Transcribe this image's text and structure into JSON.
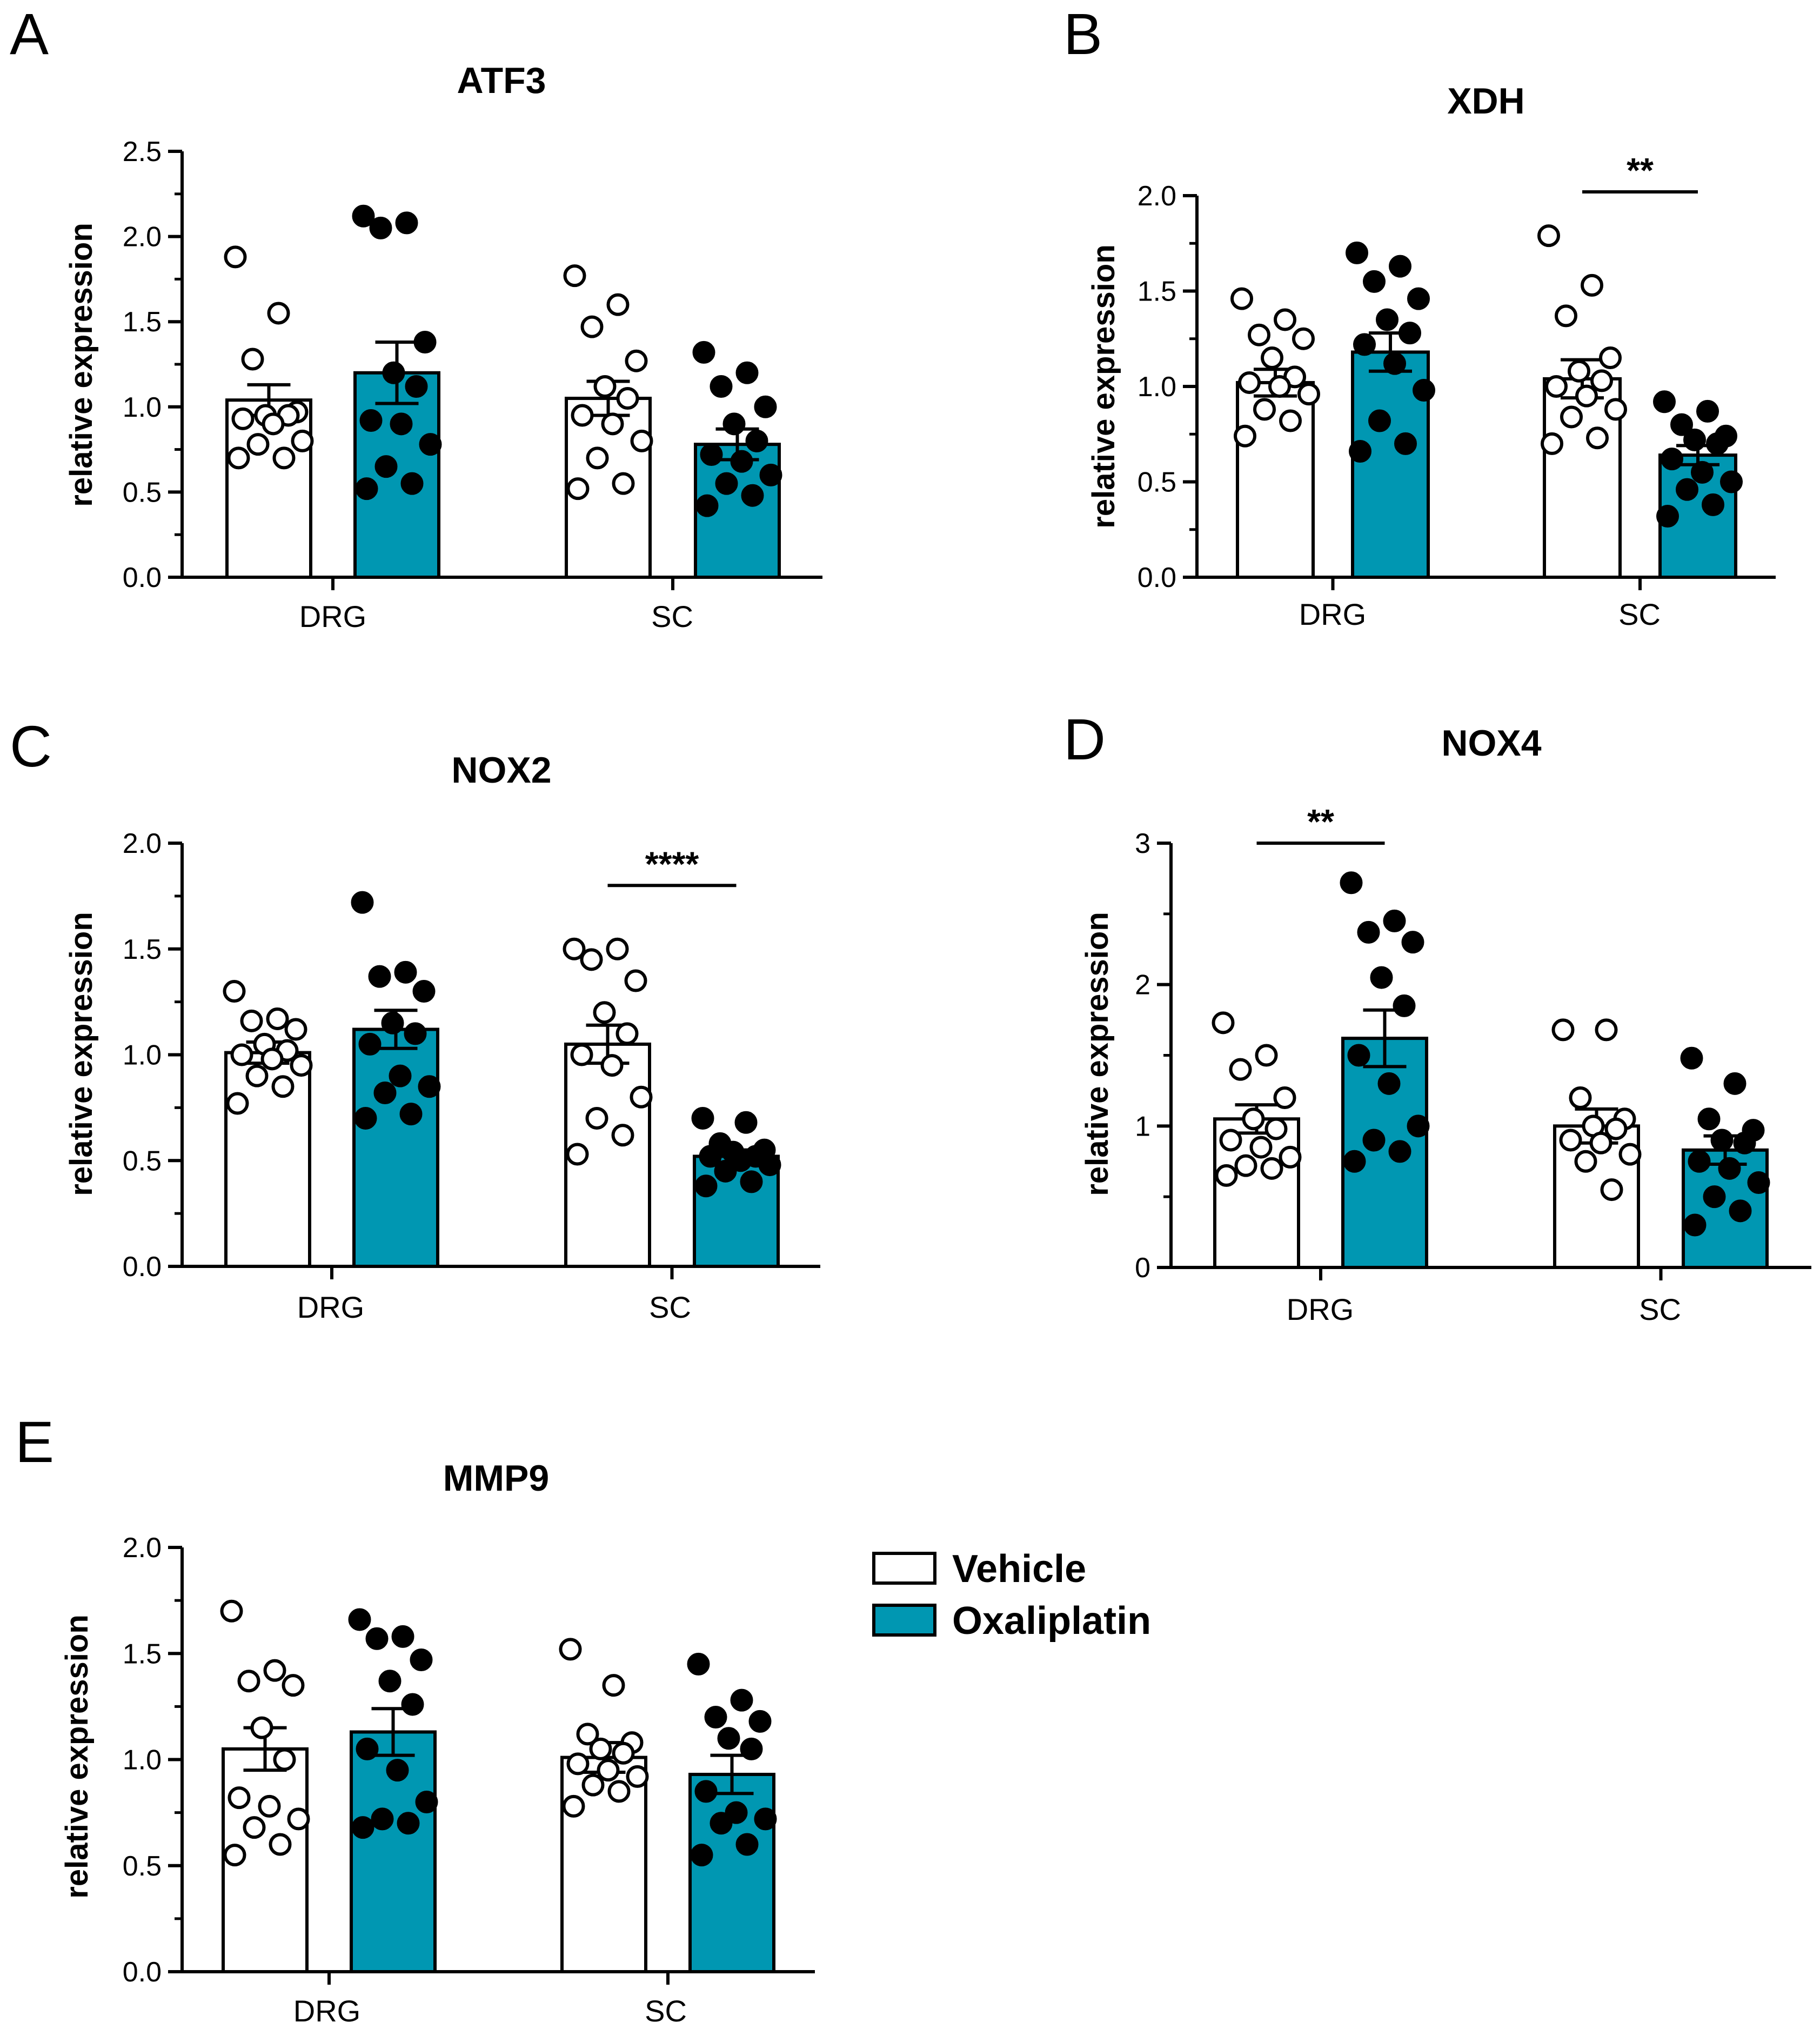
{
  "colors": {
    "vehicle": "#ffffff",
    "oxaliplatin": "#0097b2",
    "stroke": "#000000"
  },
  "legend": {
    "items": [
      {
        "name": "Vehicle",
        "color": "#ffffff"
      },
      {
        "name": "Oxaliplatin",
        "color": "#0097b2"
      }
    ],
    "placement": "right of panel E"
  },
  "chart_data": [
    {
      "panel": "A",
      "type": "bar",
      "title": "ATF3",
      "ylabel": "relative expression",
      "categories": [
        "DRG",
        "SC"
      ],
      "ylim": [
        0,
        2.5
      ],
      "yticks": [
        "0.0",
        "0.5",
        "1.0",
        "1.5",
        "2.0",
        "2.5"
      ],
      "series": [
        {
          "name": "Vehicle",
          "values": [
            1.04,
            1.05
          ],
          "sem": [
            0.09,
            0.1
          ],
          "points": [
            [
              1.88,
              1.55,
              1.28,
              0.97,
              0.95,
              0.95,
              0.93,
              0.9,
              0.8,
              0.78,
              0.7,
              0.7
            ],
            [
              1.77,
              1.6,
              1.47,
              1.27,
              1.12,
              1.05,
              0.95,
              0.9,
              0.8,
              0.7,
              0.55,
              0.52
            ]
          ]
        },
        {
          "name": "Oxaliplatin",
          "values": [
            1.2,
            0.78
          ],
          "sem": [
            0.18,
            0.09
          ],
          "points": [
            [
              2.12,
              2.08,
              2.05,
              1.38,
              1.2,
              1.12,
              0.92,
              0.9,
              0.78,
              0.65,
              0.55,
              0.52
            ],
            [
              1.32,
              1.2,
              1.12,
              1.0,
              0.9,
              0.8,
              0.72,
              0.68,
              0.6,
              0.55,
              0.48,
              0.42
            ]
          ]
        }
      ],
      "significance": []
    },
    {
      "panel": "B",
      "type": "bar",
      "title": "XDH",
      "ylabel": "relative expression",
      "categories": [
        "DRG",
        "SC"
      ],
      "ylim": [
        0,
        2.0
      ],
      "yticks": [
        "0.0",
        "0.5",
        "1.0",
        "1.5",
        "2.0"
      ],
      "series": [
        {
          "name": "Vehicle",
          "values": [
            1.02,
            1.04
          ],
          "sem": [
            0.07,
            0.1
          ],
          "points": [
            [
              1.46,
              1.35,
              1.27,
              1.25,
              1.15,
              1.05,
              1.02,
              1.0,
              0.96,
              0.88,
              0.82,
              0.74
            ],
            [
              1.79,
              1.53,
              1.37,
              1.15,
              1.08,
              1.03,
              1.0,
              0.95,
              0.88,
              0.84,
              0.73,
              0.7
            ]
          ]
        },
        {
          "name": "Oxaliplatin",
          "values": [
            1.18,
            0.64
          ],
          "sem": [
            0.1,
            0.05
          ],
          "points": [
            [
              1.7,
              1.63,
              1.55,
              1.46,
              1.35,
              1.28,
              1.22,
              1.12,
              0.98,
              0.82,
              0.7,
              0.66
            ],
            [
              0.92,
              0.87,
              0.8,
              0.74,
              0.72,
              0.7,
              0.62,
              0.55,
              0.5,
              0.46,
              0.38,
              0.32
            ]
          ]
        }
      ],
      "significance": [
        {
          "category": "SC",
          "label": "**",
          "y": 2.02
        }
      ]
    },
    {
      "panel": "C",
      "type": "bar",
      "title": "NOX2",
      "ylabel": "relative expression",
      "categories": [
        "DRG",
        "SC"
      ],
      "ylim": [
        0,
        2.0
      ],
      "yticks": [
        "0.0",
        "0.5",
        "1.0",
        "1.5",
        "2.0"
      ],
      "series": [
        {
          "name": "Vehicle",
          "values": [
            1.01,
            1.05
          ],
          "sem": [
            0.05,
            0.09
          ],
          "points": [
            [
              1.3,
              1.17,
              1.16,
              1.12,
              1.05,
              1.02,
              1.0,
              0.98,
              0.95,
              0.9,
              0.85,
              0.77
            ],
            [
              1.5,
              1.5,
              1.45,
              1.35,
              1.2,
              1.1,
              1.0,
              0.95,
              0.8,
              0.7,
              0.62,
              0.53
            ]
          ]
        },
        {
          "name": "Oxaliplatin",
          "values": [
            1.12,
            0.52
          ],
          "sem": [
            0.09,
            0.03
          ],
          "points": [
            [
              1.72,
              1.39,
              1.37,
              1.3,
              1.15,
              1.1,
              1.05,
              0.9,
              0.85,
              0.82,
              0.72,
              0.7
            ],
            [
              0.7,
              0.68,
              0.58,
              0.55,
              0.54,
              0.52,
              0.52,
              0.5,
              0.48,
              0.45,
              0.4,
              0.38
            ]
          ]
        }
      ],
      "significance": [
        {
          "category": "SC",
          "label": "****",
          "y": 1.8
        }
      ]
    },
    {
      "panel": "D",
      "type": "bar",
      "title": "NOX4",
      "ylabel": "relative expression",
      "categories": [
        "DRG",
        "SC"
      ],
      "ylim": [
        0,
        3
      ],
      "yticks": [
        "0",
        "1",
        "2",
        "3"
      ],
      "series": [
        {
          "name": "Vehicle",
          "values": [
            1.05,
            1.0
          ],
          "sem": [
            0.1,
            0.12
          ],
          "points": [
            [
              1.73,
              1.5,
              1.4,
              1.2,
              1.05,
              0.98,
              0.9,
              0.85,
              0.78,
              0.72,
              0.7,
              0.65
            ],
            [
              1.68,
              1.68,
              1.2,
              1.05,
              1.0,
              0.98,
              0.9,
              0.88,
              0.8,
              0.75,
              0.55
            ]
          ]
        },
        {
          "name": "Oxaliplatin",
          "values": [
            1.62,
            0.83
          ],
          "sem": [
            0.2,
            0.1
          ],
          "points": [
            [
              2.72,
              2.45,
              2.37,
              2.3,
              2.05,
              1.85,
              1.5,
              1.3,
              1.0,
              0.9,
              0.82,
              0.75
            ],
            [
              1.48,
              1.3,
              1.05,
              0.97,
              0.9,
              0.88,
              0.75,
              0.7,
              0.6,
              0.5,
              0.4,
              0.3
            ]
          ]
        }
      ],
      "significance": [
        {
          "category": "DRG",
          "label": "**",
          "y": 3.0
        }
      ]
    },
    {
      "panel": "E",
      "type": "bar",
      "title": "MMP9",
      "ylabel": "relative expression",
      "categories": [
        "DRG",
        "SC"
      ],
      "ylim": [
        0,
        2.0
      ],
      "yticks": [
        "0.0",
        "0.5",
        "1.0",
        "1.5",
        "2.0"
      ],
      "series": [
        {
          "name": "Vehicle",
          "values": [
            1.05,
            1.01
          ],
          "sem": [
            0.1,
            0.07
          ],
          "points": [
            [
              1.7,
              1.42,
              1.37,
              1.35,
              1.15,
              1.0,
              0.82,
              0.78,
              0.72,
              0.68,
              0.6,
              0.55
            ],
            [
              1.52,
              1.35,
              1.12,
              1.08,
              1.05,
              1.03,
              0.98,
              0.95,
              0.92,
              0.88,
              0.85,
              0.78
            ]
          ]
        },
        {
          "name": "Oxaliplatin",
          "values": [
            1.13,
            0.93
          ],
          "sem": [
            0.11,
            0.09
          ],
          "points": [
            [
              1.66,
              1.58,
              1.57,
              1.47,
              1.37,
              1.26,
              1.05,
              0.95,
              0.8,
              0.72,
              0.7,
              0.68
            ],
            [
              1.45,
              1.28,
              1.2,
              1.18,
              1.1,
              1.05,
              0.85,
              0.75,
              0.72,
              0.7,
              0.6,
              0.55
            ]
          ]
        }
      ],
      "significance": []
    }
  ]
}
